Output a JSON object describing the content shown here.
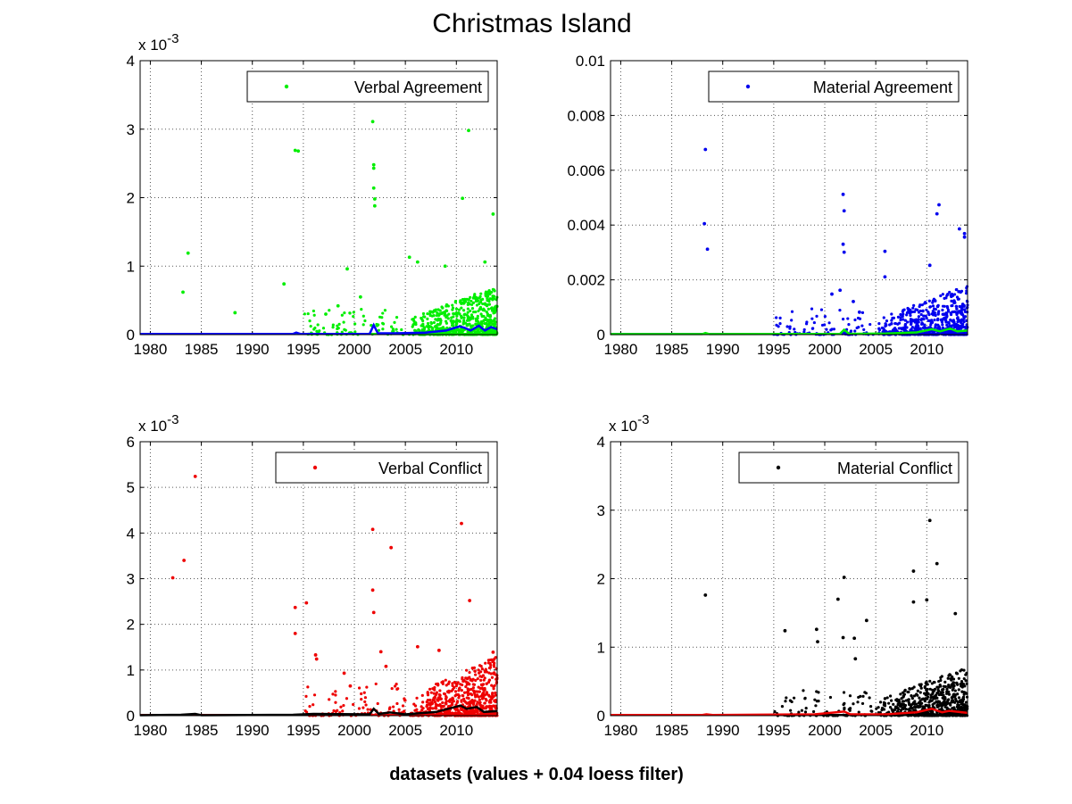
{
  "figure": {
    "title": "Christmas Island",
    "xlabel": "datasets (values + 0.04 loess filter)"
  },
  "chart_data": [
    {
      "type": "scatter",
      "title": "",
      "legend": "Verbal Agreement",
      "legend_location": "top-right",
      "marker_color": "#00ee00",
      "smooth_color": "#0000ff",
      "grid": true,
      "xlim": [
        1979,
        2014
      ],
      "ylim": [
        0,
        0.004
      ],
      "exponent_label": "x 10-3",
      "xticks": [
        1980,
        1985,
        1990,
        1995,
        2000,
        2005,
        2010
      ],
      "yticks": [
        0,
        0.001,
        0.002,
        0.003,
        0.004
      ],
      "ytick_labels": [
        "0",
        "1",
        "2",
        "3",
        "4"
      ],
      "points": [
        [
          1983.2,
          0.00062
        ],
        [
          1983.7,
          0.00119
        ],
        [
          1988.3,
          0.00032
        ],
        [
          1993.1,
          0.00074
        ],
        [
          1994.2,
          0.00269
        ],
        [
          1994.5,
          0.00268
        ],
        [
          1999.3,
          0.00096
        ],
        [
          2001.8,
          0.00311
        ],
        [
          2001.9,
          0.00248
        ],
        [
          2001.9,
          0.00243
        ],
        [
          2001.9,
          0.00214
        ],
        [
          2002.0,
          0.00198
        ],
        [
          2002.0,
          0.00188
        ],
        [
          2010.6,
          0.00199
        ],
        [
          2011.2,
          0.00298
        ],
        [
          2013.6,
          0.00176
        ],
        [
          2005.4,
          0.00113
        ],
        [
          2006.2,
          0.00106
        ],
        [
          2008.9,
          0.001
        ],
        [
          2012.8,
          0.00106
        ],
        [
          1997.2,
          0.0003
        ],
        [
          1998.4,
          0.00042
        ],
        [
          2000.6,
          0.00055
        ]
      ],
      "smooth": [
        [
          1979,
          1e-05
        ],
        [
          1994,
          1e-05
        ],
        [
          1994.3,
          3e-05
        ],
        [
          1994.7,
          1e-05
        ],
        [
          2001.5,
          1e-05
        ],
        [
          2001.9,
          0.00014
        ],
        [
          2002.3,
          2e-05
        ],
        [
          2004,
          2e-05
        ],
        [
          2007,
          3e-05
        ],
        [
          2009,
          6e-05
        ],
        [
          2010.3,
          0.00012
        ],
        [
          2010.8,
          0.0001
        ],
        [
          2011.4,
          6e-05
        ],
        [
          2012.2,
          0.00013
        ],
        [
          2012.8,
          6e-05
        ],
        [
          2013.4,
          0.00011
        ],
        [
          2014,
          8e-05
        ]
      ]
    },
    {
      "type": "scatter",
      "title": "",
      "legend": "Material Agreement",
      "legend_location": "top-right",
      "marker_color": "#0000ee",
      "smooth_color": "#00ee00",
      "grid": true,
      "xlim": [
        1979,
        2014
      ],
      "ylim": [
        0,
        0.01
      ],
      "exponent_label": "",
      "xticks": [
        1980,
        1985,
        1990,
        1995,
        2000,
        2005,
        2010
      ],
      "yticks": [
        0,
        0.002,
        0.004,
        0.006,
        0.008,
        0.01
      ],
      "ytick_labels": [
        "0",
        "0.002",
        "0.004",
        "0.006",
        "0.008",
        "0.01"
      ],
      "points": [
        [
          1988.3,
          0.00676
        ],
        [
          1988.2,
          0.00405
        ],
        [
          1988.5,
          0.00312
        ],
        [
          2001.8,
          0.00512
        ],
        [
          2001.9,
          0.00452
        ],
        [
          2001.8,
          0.0033
        ],
        [
          2001.9,
          0.00301
        ],
        [
          2005.9,
          0.00304
        ],
        [
          2005.9,
          0.00211
        ],
        [
          2010.3,
          0.00253
        ],
        [
          2011.0,
          0.00441
        ],
        [
          2011.2,
          0.00474
        ],
        [
          2013.2,
          0.00386
        ],
        [
          2013.7,
          0.00369
        ],
        [
          2013.7,
          0.00356
        ],
        [
          2000.7,
          0.00148
        ],
        [
          2001.5,
          0.00162
        ],
        [
          2002.8,
          0.00121
        ],
        [
          2003.4,
          0.00082
        ]
      ],
      "smooth": [
        [
          1979,
          2e-05
        ],
        [
          1988,
          2e-05
        ],
        [
          1988.3,
          6e-05
        ],
        [
          1988.7,
          2e-05
        ],
        [
          2001.5,
          3e-05
        ],
        [
          2001.9,
          0.00018
        ],
        [
          2002.4,
          3e-05
        ],
        [
          2006,
          4e-05
        ],
        [
          2009,
          8e-05
        ],
        [
          2010.5,
          0.0002
        ],
        [
          2011.3,
          0.00012
        ],
        [
          2012.3,
          0.00022
        ],
        [
          2013,
          0.00012
        ],
        [
          2014,
          0.00015
        ]
      ]
    },
    {
      "type": "scatter",
      "title": "",
      "legend": "Verbal Conflict",
      "legend_location": "top-right",
      "marker_color": "#ee0000",
      "smooth_color": "#000000",
      "grid": true,
      "xlim": [
        1979,
        2014
      ],
      "ylim": [
        0,
        0.006
      ],
      "exponent_label": "x 10-3",
      "xticks": [
        1980,
        1985,
        1990,
        1995,
        2000,
        2005,
        2010
      ],
      "yticks": [
        0,
        0.001,
        0.002,
        0.003,
        0.004,
        0.005,
        0.006
      ],
      "ytick_labels": [
        "0",
        "1",
        "2",
        "3",
        "4",
        "5",
        "6"
      ],
      "points": [
        [
          1982.2,
          0.00302
        ],
        [
          1983.3,
          0.0034
        ],
        [
          1984.4,
          0.00524
        ],
        [
          1994.2,
          0.00237
        ],
        [
          1994.2,
          0.0018
        ],
        [
          1995.3,
          0.00247
        ],
        [
          1996.2,
          0.00133
        ],
        [
          1996.3,
          0.00124
        ],
        [
          1999.0,
          0.00093
        ],
        [
          1999.6,
          0.00065
        ],
        [
          2001.8,
          0.00408
        ],
        [
          2001.8,
          0.00275
        ],
        [
          2001.9,
          0.00226
        ],
        [
          2003.6,
          0.00368
        ],
        [
          2006.2,
          0.00151
        ],
        [
          2008.3,
          0.00143
        ],
        [
          2010.5,
          0.00421
        ],
        [
          2011.3,
          0.00252
        ],
        [
          2013.6,
          0.00139
        ],
        [
          2003.1,
          0.00108
        ],
        [
          2002.6,
          0.0014
        ]
      ],
      "smooth": [
        [
          1979,
          1e-05
        ],
        [
          1983,
          2e-05
        ],
        [
          1984.4,
          4e-05
        ],
        [
          1985,
          1e-05
        ],
        [
          1994,
          2e-05
        ],
        [
          1996,
          4e-05
        ],
        [
          2001.5,
          3e-05
        ],
        [
          2001.9,
          0.00015
        ],
        [
          2002.4,
          4e-05
        ],
        [
          2003.5,
          7e-05
        ],
        [
          2005,
          3e-05
        ],
        [
          2008,
          8e-05
        ],
        [
          2010.4,
          0.00022
        ],
        [
          2011,
          0.00015
        ],
        [
          2012,
          0.00019
        ],
        [
          2012.7,
          8e-05
        ],
        [
          2014,
          0.0001
        ]
      ]
    },
    {
      "type": "scatter",
      "title": "",
      "legend": "Material Conflict",
      "legend_location": "top-right",
      "marker_color": "#000000",
      "smooth_color": "#ee0000",
      "grid": true,
      "xlim": [
        1979,
        2014
      ],
      "ylim": [
        0,
        0.004
      ],
      "exponent_label": "x 10-3",
      "xticks": [
        1980,
        1985,
        1990,
        1995,
        2000,
        2005,
        2010
      ],
      "yticks": [
        0,
        0.001,
        0.002,
        0.003,
        0.004
      ],
      "ytick_labels": [
        "0",
        "1",
        "2",
        "3",
        "4"
      ],
      "points": [
        [
          1988.3,
          0.00176
        ],
        [
          1996.1,
          0.00124
        ],
        [
          1999.2,
          0.00126
        ],
        [
          1999.3,
          0.00108
        ],
        [
          2001.3,
          0.0017
        ],
        [
          2001.9,
          0.00202
        ],
        [
          2001.8,
          0.00114
        ],
        [
          2002.9,
          0.00113
        ],
        [
          2004.1,
          0.00139
        ],
        [
          2008.7,
          0.00211
        ],
        [
          2008.7,
          0.00166
        ],
        [
          2010.3,
          0.00285
        ],
        [
          2011.0,
          0.00222
        ],
        [
          2012.8,
          0.00149
        ],
        [
          2010.0,
          0.00169
        ],
        [
          2003.0,
          0.00083
        ]
      ],
      "smooth": [
        [
          1979,
          1e-05
        ],
        [
          1988,
          1e-05
        ],
        [
          1988.4,
          2e-05
        ],
        [
          1989,
          1e-05
        ],
        [
          1999,
          2e-05
        ],
        [
          2001.9,
          6e-05
        ],
        [
          2002.5,
          2e-05
        ],
        [
          2006,
          2e-05
        ],
        [
          2009,
          5e-05
        ],
        [
          2010.5,
          0.0001
        ],
        [
          2011.5,
          5e-05
        ],
        [
          2012.2,
          7e-05
        ],
        [
          2014,
          4e-05
        ]
      ]
    }
  ]
}
